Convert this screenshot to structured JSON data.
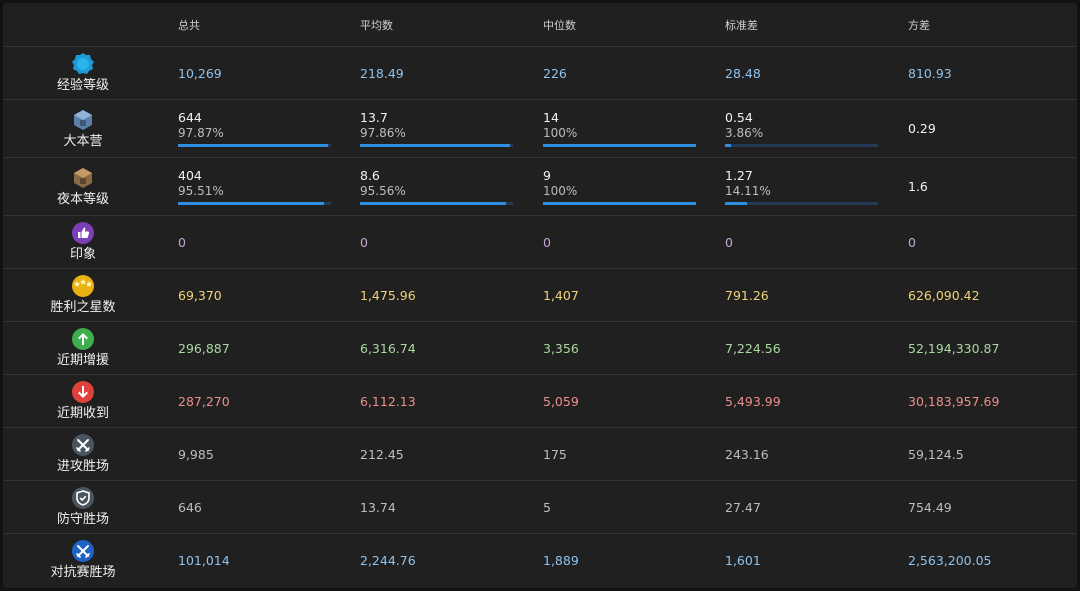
{
  "columns": [
    "总共",
    "平均数",
    "中位数",
    "标准差",
    "方差"
  ],
  "rows": {
    "exp": {
      "label": "经验等级",
      "icon": "xp-badge-icon",
      "values": [
        "10,269",
        "218.49",
        "226",
        "28.48",
        "810.93"
      ]
    },
    "th": {
      "label": "大本营",
      "icon": "town-hall-icon",
      "values": [
        "644",
        "13.7",
        "14",
        "0.54",
        "0.29"
      ],
      "pcts": [
        "97.87%",
        "97.86%",
        "100%",
        "3.86%"
      ],
      "progress": [
        0.9787,
        0.9786,
        1.0,
        0.0386
      ]
    },
    "bh": {
      "label": "夜本等级",
      "icon": "builder-hall-icon",
      "values": [
        "404",
        "8.6",
        "9",
        "1.27",
        "1.6"
      ],
      "pcts": [
        "95.51%",
        "95.56%",
        "100%",
        "14.11%"
      ],
      "progress": [
        0.9551,
        0.9556,
        1.0,
        0.1411
      ]
    },
    "impression": {
      "label": "印象",
      "icon": "thumbs-up-icon",
      "values": [
        "0",
        "0",
        "0",
        "0",
        "0"
      ]
    },
    "stars": {
      "label": "胜利之星数",
      "icon": "war-stars-icon",
      "values": [
        "69,370",
        "1,475.96",
        "1,407",
        "791.26",
        "626,090.42"
      ]
    },
    "donated": {
      "label": "近期增援",
      "icon": "arrow-up-icon",
      "values": [
        "296,887",
        "6,316.74",
        "3,356",
        "7,224.56",
        "52,194,330.87"
      ]
    },
    "received": {
      "label": "近期收到",
      "icon": "arrow-down-icon",
      "values": [
        "287,270",
        "6,112.13",
        "5,059",
        "5,493.99",
        "30,183,957.69"
      ]
    },
    "attack": {
      "label": "进攻胜场",
      "icon": "crossed-swords-icon",
      "values": [
        "9,985",
        "212.45",
        "175",
        "243.16",
        "59,124.5"
      ]
    },
    "defense": {
      "label": "防守胜场",
      "icon": "shield-icon",
      "values": [
        "646",
        "13.74",
        "5",
        "27.47",
        "754.49"
      ]
    },
    "versus": {
      "label": "对抗赛胜场",
      "icon": "versus-swords-icon",
      "values": [
        "101,014",
        "2,244.76",
        "1,889",
        "1,601",
        "2,563,200.05"
      ]
    }
  },
  "colors": {
    "exp": "#8fc2ec",
    "impression": "#bfa8d8",
    "stars": "#f0d27a",
    "donated": "#a9d8a0",
    "received": "#ec8f8a",
    "attack": "#bdbdbd",
    "defense": "#bdbdbd",
    "versus": "#8fc2ec",
    "bar_fill": "#2e8fe0",
    "bar_track": "#223a55"
  }
}
